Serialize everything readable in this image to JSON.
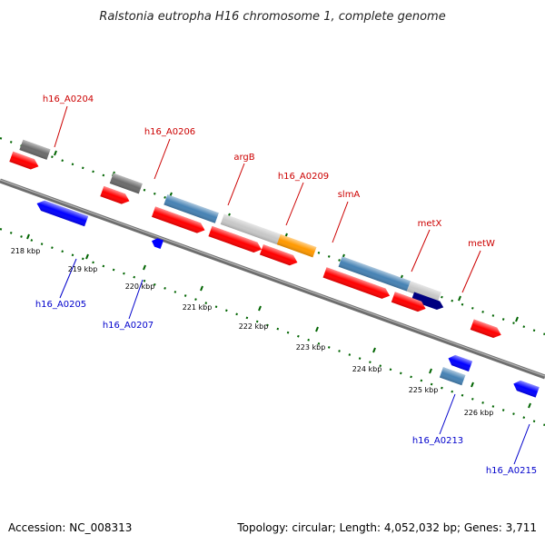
{
  "title": "Ralstonia eutropha H16 chromosome 1, complete genome",
  "footer": {
    "accession": "Accession: NC_008313",
    "topology": "Topology: circular; Length: 4,052,032 bp; Genes: 3,711"
  },
  "colors": {
    "forward_label": "#cc0000",
    "reverse_label": "#0000cc",
    "cds": "#ff0000",
    "cds_reverse": "#0000ff",
    "gene_gray": "#6b6b6b",
    "gene_light_gray": "#c8c8c8",
    "gene_steelblue": "#4682b4",
    "gene_orange": "#ff9900",
    "gene_navy": "#000080",
    "gene_green": "#22dd22",
    "backbone": "#808080",
    "tick": "#006400"
  },
  "scale_labels": [
    "218 kbp",
    "219 kbp",
    "220 kbp",
    "221 kbp",
    "222 kbp",
    "223 kbp",
    "224 kbp",
    "225 kbp",
    "226 kbp"
  ],
  "forward_labels": [
    "h16_A0204",
    "h16_A0206",
    "argB",
    "h16_A0209",
    "slmA",
    "metX",
    "metW"
  ],
  "reverse_labels": [
    "h16_A0205",
    "h16_A0207",
    "h16_A0213",
    "h16_A0215"
  ]
}
